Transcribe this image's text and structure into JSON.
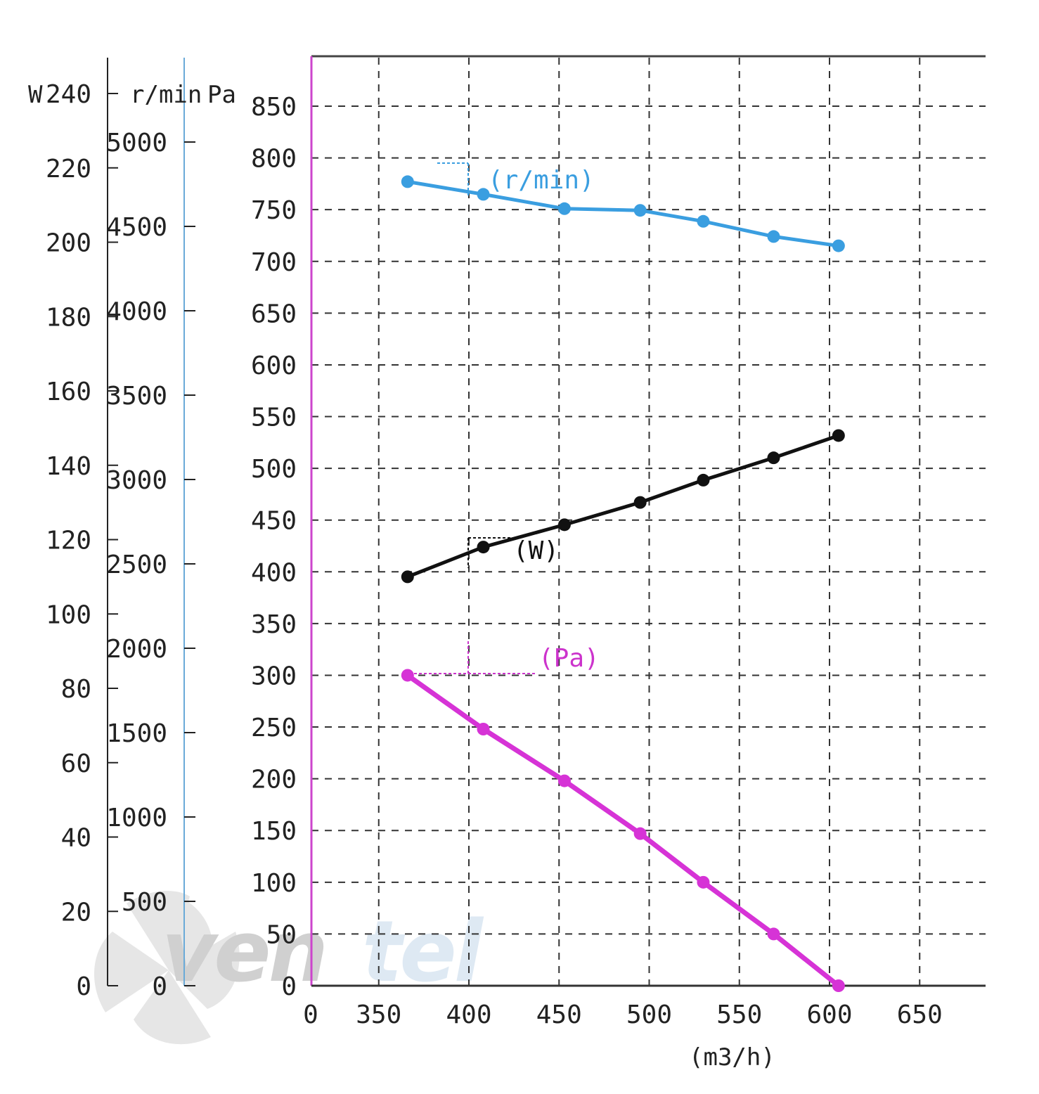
{
  "chart_data": {
    "type": "line",
    "xlabel": "(m3/h)",
    "x_ticks": [
      "0",
      "350",
      "400",
      "450",
      "500",
      "550",
      "600",
      "650"
    ],
    "xlim": [
      300,
      680
    ],
    "grid": true,
    "axes": {
      "power": {
        "unit": "W",
        "ticks": [
          "0",
          "20",
          "40",
          "60",
          "80",
          "100",
          "120",
          "140",
          "160",
          "180",
          "200",
          "220",
          "240"
        ],
        "range": [
          0,
          240
        ],
        "color": "#222222"
      },
      "speed": {
        "unit": "r/min",
        "ticks": [
          "0",
          "500",
          "1000",
          "1500",
          "2000",
          "2500",
          "3000",
          "3500",
          "4000",
          "4500",
          "5000"
        ],
        "range": [
          0,
          5000
        ],
        "color": "#5b9bd5"
      },
      "pressure": {
        "unit": "Pa",
        "ticks": [
          "0",
          "50",
          "100",
          "150",
          "200",
          "250",
          "300",
          "350",
          "400",
          "450",
          "500",
          "550",
          "600",
          "650",
          "700",
          "750",
          "800",
          "850"
        ],
        "range": [
          0,
          850
        ],
        "color": "#cc33cc"
      }
    },
    "series": [
      {
        "name": "(r/min)",
        "axis": "speed",
        "color": "#3a9ee0",
        "x": [
          366,
          408,
          453,
          495,
          530,
          569,
          605
        ],
        "values": [
          4765,
          4690,
          4605,
          4595,
          4530,
          4440,
          4385
        ]
      },
      {
        "name": "(W)",
        "axis": "power",
        "color": "#111111",
        "x": [
          366,
          408,
          453,
          495,
          530,
          569,
          605
        ],
        "values": [
          110,
          118,
          124,
          130,
          136,
          142,
          148
        ]
      },
      {
        "name": "(Pa)",
        "axis": "pressure",
        "color": "#d633d6",
        "x": [
          366,
          408,
          453,
          495,
          530,
          569,
          605
        ],
        "values": [
          300,
          248,
          198,
          147,
          100,
          50,
          0
        ]
      }
    ]
  },
  "watermark": {
    "text_a": "ven",
    "text_b": "tel",
    "color_a": "#c8c8c8",
    "color_b": "#d9e6f2"
  }
}
